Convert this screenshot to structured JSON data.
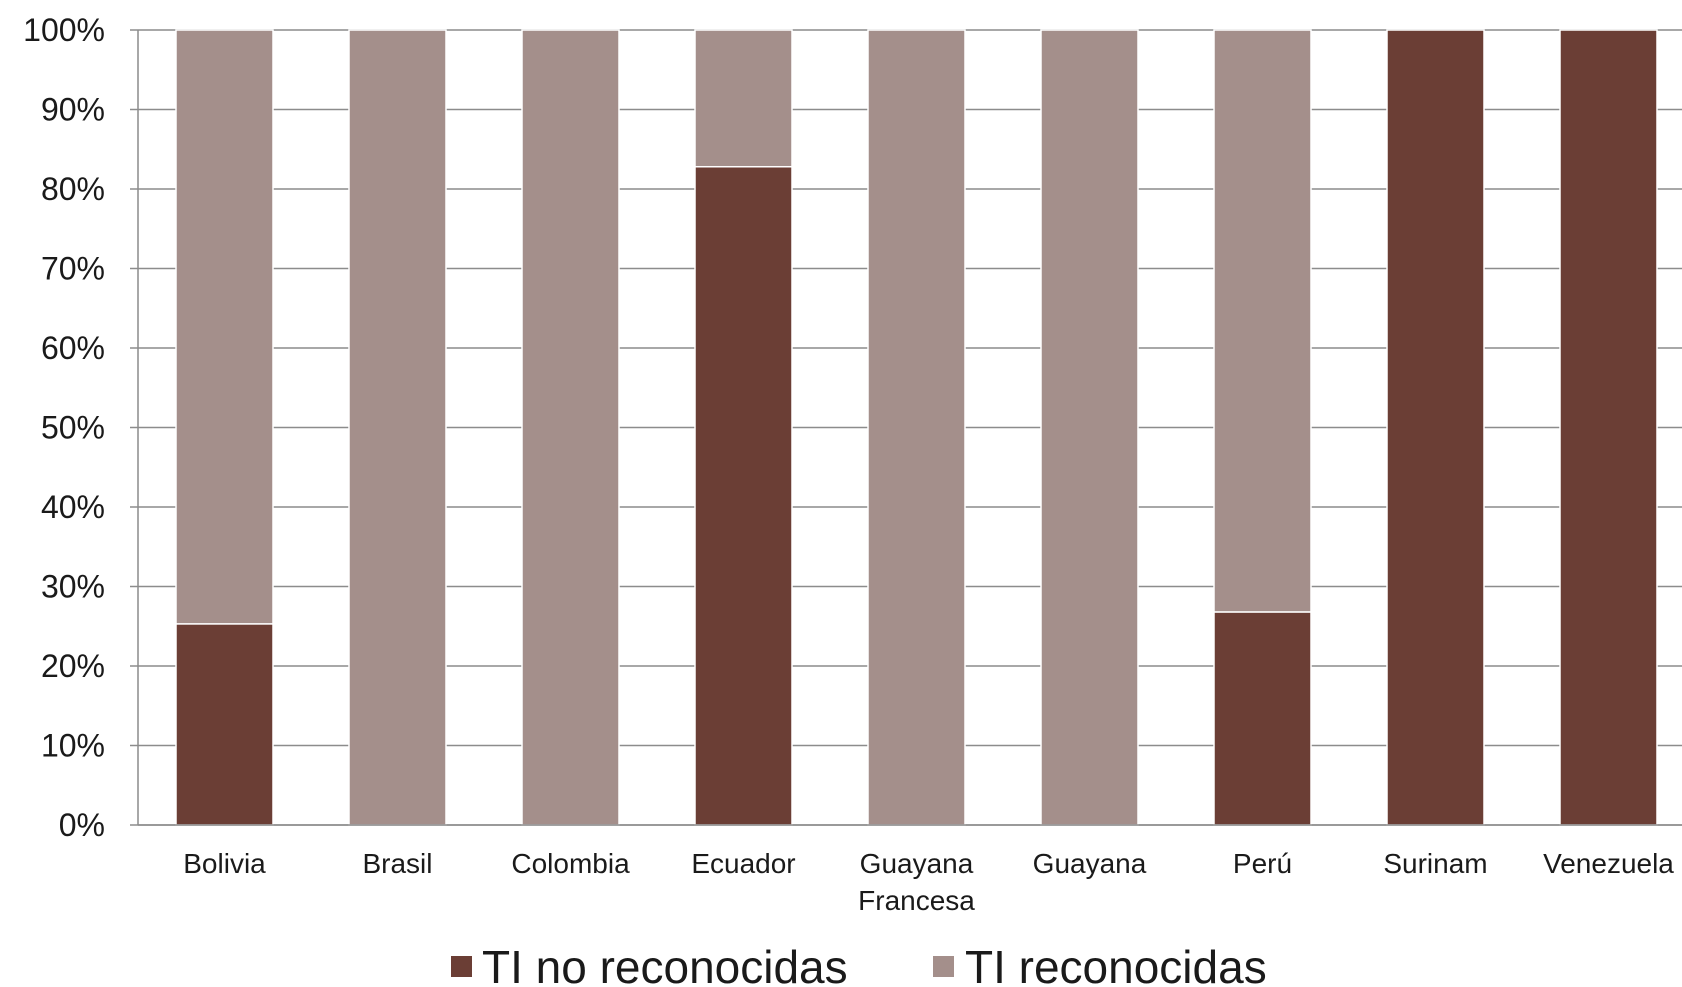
{
  "chart_data": {
    "type": "bar",
    "stacked": true,
    "percent": true,
    "categories": [
      [
        "Bolivia"
      ],
      [
        "Brasil"
      ],
      [
        "Colombia"
      ],
      [
        "Ecuador"
      ],
      [
        "Guayana",
        "Francesa"
      ],
      [
        "Guayana"
      ],
      [
        "Perú"
      ],
      [
        "Surinam"
      ],
      [
        "Venezuela"
      ]
    ],
    "series": [
      {
        "name": "TI no reconocidas",
        "color": "#6b3e35",
        "values": [
          25.3,
          0,
          0,
          82.8,
          0,
          0,
          26.8,
          100,
          100
        ]
      },
      {
        "name": "TI reconocidas",
        "color": "#a48f8b",
        "values": [
          74.7,
          100,
          100,
          17.2,
          100,
          100,
          73.2,
          0,
          0
        ]
      }
    ],
    "yticks": [
      "0%",
      "10%",
      "20%",
      "30%",
      "40%",
      "50%",
      "60%",
      "70%",
      "80%",
      "90%",
      "100%"
    ],
    "ylim": [
      0,
      100
    ],
    "grid": true,
    "legend": "bottom",
    "title": "",
    "xlabel": "",
    "ylabel": ""
  }
}
